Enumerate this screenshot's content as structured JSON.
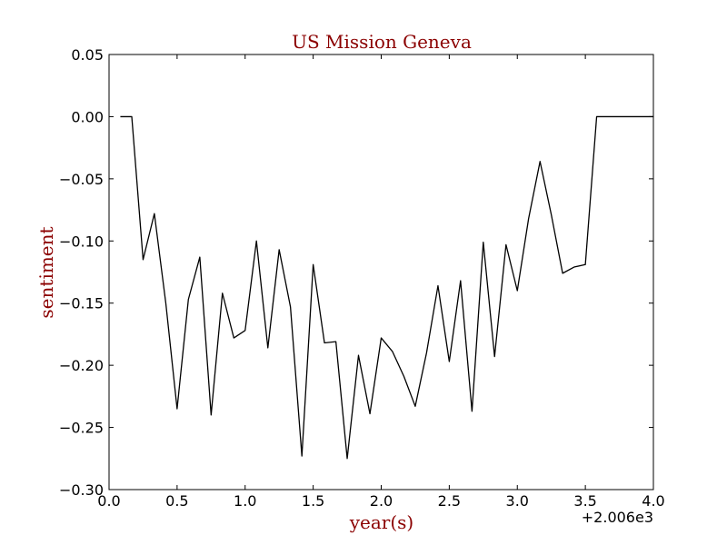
{
  "chart_data": {
    "type": "line",
    "title": "US Mission Geneva",
    "xlabel": "year(s)",
    "ylabel": "sentiment",
    "offset_text": "+2.006e3",
    "label_color": "#8b0000",
    "line_color": "#000000",
    "xlim": [
      0.0,
      4.0
    ],
    "ylim": [
      -0.3,
      0.05
    ],
    "x_ticks": [
      "0.0",
      "0.5",
      "1.0",
      "1.5",
      "2.0",
      "2.5",
      "3.0",
      "3.5",
      "4.0"
    ],
    "x_tick_values": [
      0.0,
      0.5,
      1.0,
      1.5,
      2.0,
      2.5,
      3.0,
      3.5,
      4.0
    ],
    "y_ticks": [
      "0.05",
      "0.00",
      "−0.05",
      "−0.10",
      "−0.15",
      "−0.20",
      "−0.25",
      "−0.30"
    ],
    "y_tick_values": [
      0.05,
      0.0,
      -0.05,
      -0.1,
      -0.15,
      -0.2,
      -0.25,
      -0.3
    ],
    "grid": false,
    "legend": "none",
    "series": [
      {
        "x": [
          0.083,
          0.167,
          0.25,
          0.333,
          0.417,
          0.5,
          0.583,
          0.667,
          0.75,
          0.833,
          0.917,
          1.0,
          1.083,
          1.167,
          1.25,
          1.333,
          1.417,
          1.5,
          1.583,
          1.667,
          1.75,
          1.833,
          1.917,
          2.0,
          2.083,
          2.167,
          2.25,
          2.333,
          2.417,
          2.5,
          2.583,
          2.667,
          2.75,
          2.833,
          2.917,
          3.0,
          3.083,
          3.167,
          3.25,
          3.333,
          3.417,
          3.5,
          3.583,
          3.667,
          3.75,
          3.833,
          3.917,
          4.0
        ],
        "y": [
          0.0,
          0.0,
          -0.115,
          -0.078,
          -0.15,
          -0.235,
          -0.147,
          -0.113,
          -0.24,
          -0.142,
          -0.178,
          -0.172,
          -0.1,
          -0.186,
          -0.107,
          -0.153,
          -0.273,
          -0.119,
          -0.182,
          -0.181,
          -0.275,
          -0.192,
          -0.239,
          -0.178,
          -0.189,
          -0.209,
          -0.233,
          -0.19,
          -0.136,
          -0.197,
          -0.132,
          -0.237,
          -0.101,
          -0.193,
          -0.103,
          -0.14,
          -0.082,
          -0.036,
          -0.079,
          -0.126,
          -0.121,
          -0.119,
          0.0,
          0.0,
          0.0,
          0.0,
          0.0,
          0.0
        ]
      }
    ]
  }
}
